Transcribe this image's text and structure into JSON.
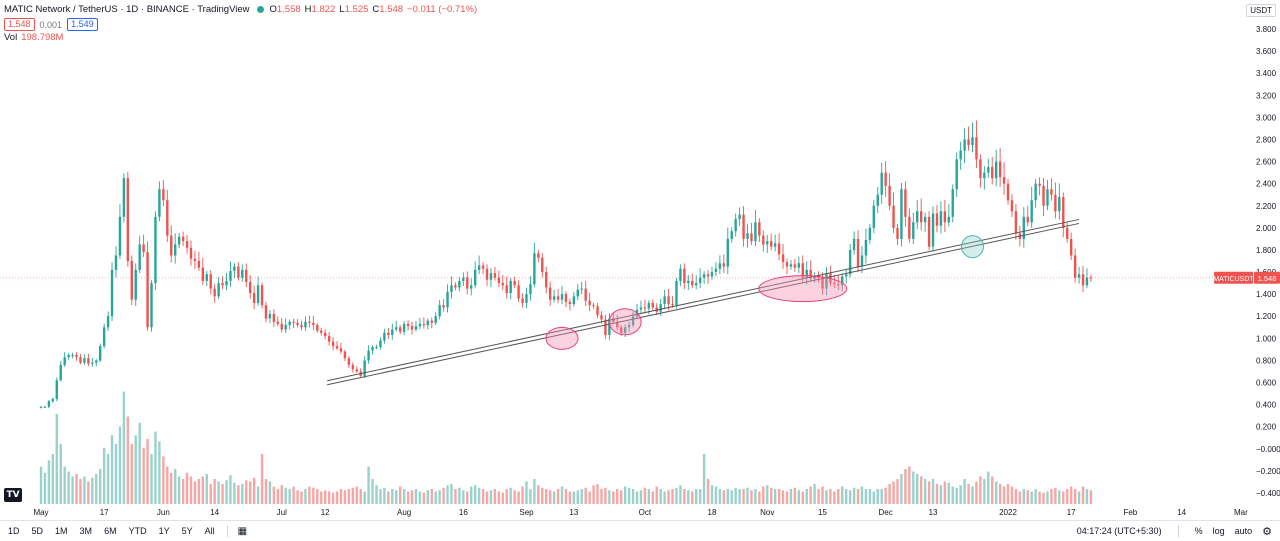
{
  "legend": {
    "title": "MATIC Network / TetherUS · 1D · BINANCE · TradingView",
    "ohlc": [
      {
        "label": "O",
        "value": "1.558"
      },
      {
        "label": "H",
        "value": "1.822"
      },
      {
        "label": "L",
        "value": "1.525"
      },
      {
        "label": "C",
        "value": "1.548"
      },
      {
        "label": "",
        "value": "−0.011 (−0.71%)"
      }
    ],
    "bid": "1.548",
    "spread": "0.001",
    "ask": "1.549",
    "vol_label": "Vol",
    "vol_value": "198.798M"
  },
  "axis": {
    "currency": "USDT",
    "ticker_label": "MATICUSDT",
    "last_price": "1.548"
  },
  "bottom_bar": {
    "ranges": [
      "1D",
      "5D",
      "1M",
      "3M",
      "6M",
      "YTD",
      "1Y",
      "5Y",
      "All"
    ],
    "time": "04:17:24 (UTC+5:30)",
    "percent": "%",
    "log": "log",
    "auto": "auto"
  },
  "colors": {
    "up": "#26a69a",
    "down": "#ef5350",
    "up_volume": "#9ad2cb",
    "down_volume": "#f5a6a5",
    "ellipse_pink": "#f48fb1",
    "ellipse_teal": "#80cbc4",
    "last_price_line": "#ef5350"
  },
  "chart_data": {
    "type": "candlestick",
    "symbol": "MATICUSDT",
    "timeframe": "1D",
    "ylim": [
      -0.5,
      4.0
    ],
    "y_ticks": [
      "3.800",
      "3.600",
      "3.400",
      "3.200",
      "3.000",
      "2.800",
      "2.600",
      "2.400",
      "2.200",
      "2.000",
      "1.800",
      "1.600",
      "1.400",
      "1.200",
      "1.000",
      "0.800",
      "0.600",
      "0.400",
      "0.200",
      "−0.000",
      "−0.200",
      "−0.400"
    ],
    "x_ticks": [
      {
        "label": "May",
        "day": 0
      },
      {
        "label": "17",
        "day": 16
      },
      {
        "label": "Jun",
        "day": 31
      },
      {
        "label": "14",
        "day": 44
      },
      {
        "label": "Jul",
        "day": 61
      },
      {
        "label": "12",
        "day": 72
      },
      {
        "label": "Aug",
        "day": 92
      },
      {
        "label": "16",
        "day": 107
      },
      {
        "label": "Sep",
        "day": 123
      },
      {
        "label": "13",
        "day": 135
      },
      {
        "label": "Oct",
        "day": 153
      },
      {
        "label": "18",
        "day": 170
      },
      {
        "label": "Nov",
        "day": 184
      },
      {
        "label": "15",
        "day": 198
      },
      {
        "label": "Dec",
        "day": 214
      },
      {
        "label": "13",
        "day": 226
      },
      {
        "label": "2022",
        "day": 245
      },
      {
        "label": "17",
        "day": 261
      },
      {
        "label": "Feb",
        "day": 276
      },
      {
        "label": "14",
        "day": 289
      },
      {
        "label": "Mar",
        "day": 304
      }
    ],
    "close_prices": [
      0.38,
      0.38,
      0.43,
      0.45,
      0.62,
      0.76,
      0.83,
      0.85,
      0.85,
      0.83,
      0.78,
      0.82,
      0.77,
      0.78,
      0.8,
      0.93,
      1.1,
      1.2,
      1.62,
      1.75,
      2.1,
      2.45,
      1.7,
      1.35,
      1.62,
      1.85,
      1.78,
      1.1,
      1.5,
      2.1,
      2.35,
      2.25,
      1.93,
      1.75,
      1.85,
      1.92,
      1.88,
      1.82,
      1.72,
      1.7,
      1.64,
      1.52,
      1.58,
      1.45,
      1.38,
      1.5,
      1.48,
      1.52,
      1.61,
      1.65,
      1.55,
      1.62,
      1.51,
      1.41,
      1.32,
      1.48,
      1.3,
      1.18,
      1.22,
      1.15,
      1.13,
      1.08,
      1.12,
      1.15,
      1.14,
      1.12,
      1.1,
      1.15,
      1.14,
      1.12,
      1.07,
      1.05,
      1.02,
      0.97,
      0.93,
      0.91,
      0.88,
      0.82,
      0.76,
      0.72,
      0.7,
      0.66,
      0.8,
      0.89,
      0.92,
      0.92,
      0.98,
      1.05,
      1.03,
      1.08,
      1.1,
      1.06,
      1.13,
      1.11,
      1.08,
      1.11,
      1.13,
      1.12,
      1.16,
      1.14,
      1.2,
      1.3,
      1.28,
      1.42,
      1.48,
      1.46,
      1.52,
      1.55,
      1.45,
      1.48,
      1.62,
      1.66,
      1.63,
      1.53,
      1.59,
      1.55,
      1.5,
      1.48,
      1.41,
      1.52,
      1.48,
      1.36,
      1.32,
      1.4,
      1.49,
      1.77,
      1.73,
      1.6,
      1.46,
      1.35,
      1.38,
      1.35,
      1.4,
      1.33,
      1.31,
      1.38,
      1.44,
      1.45,
      1.34,
      1.3,
      1.29,
      1.21,
      1.17,
      1.03,
      1.18,
      1.15,
      1.1,
      1.05,
      1.1,
      1.12,
      1.2,
      1.26,
      1.28,
      1.27,
      1.32,
      1.28,
      1.24,
      1.31,
      1.38,
      1.31,
      1.3,
      1.52,
      1.63,
      1.5,
      1.52,
      1.48,
      1.5,
      1.55,
      1.58,
      1.56,
      1.6,
      1.63,
      1.68,
      1.65,
      1.9,
      1.97,
      2.08,
      2.12,
      1.9,
      1.95,
      1.88,
      2.05,
      1.93,
      1.85,
      1.88,
      1.83,
      1.86,
      1.76,
      1.69,
      1.65,
      1.67,
      1.64,
      1.68,
      1.55,
      1.62,
      1.54,
      1.57,
      1.55,
      1.45,
      1.59,
      1.5,
      1.49,
      1.48,
      1.56,
      1.58,
      1.8,
      1.9,
      1.65,
      1.75,
      1.89,
      2.0,
      2.2,
      2.3,
      2.5,
      2.38,
      2.2,
      2.0,
      1.9,
      2.35,
      2.1,
      1.9,
      2.05,
      2.15,
      2.05,
      2.1,
      1.83,
      2.13,
      2.02,
      2.15,
      2.05,
      2.1,
      2.35,
      2.62,
      2.7,
      2.8,
      2.75,
      2.82,
      2.62,
      2.45,
      2.5,
      2.55,
      2.45,
      2.6,
      2.46,
      2.4,
      2.25,
      2.15,
      1.95,
      1.9,
      2.1,
      2.05,
      2.25,
      2.4,
      2.38,
      2.2,
      2.35,
      2.3,
      2.15,
      2.28,
      2.0,
      1.9,
      1.75,
      1.55,
      1.58,
      1.48,
      1.55,
      1.548
    ],
    "volume_scale": [
      0.3,
      0.25,
      0.35,
      0.4,
      0.72,
      0.48,
      0.3,
      0.26,
      0.22,
      0.24,
      0.2,
      0.22,
      0.18,
      0.21,
      0.24,
      0.28,
      0.45,
      0.4,
      0.55,
      0.48,
      0.62,
      0.9,
      0.7,
      0.48,
      0.55,
      0.65,
      0.45,
      0.52,
      0.4,
      0.58,
      0.5,
      0.38,
      0.3,
      0.25,
      0.28,
      0.22,
      0.2,
      0.25,
      0.22,
      0.18,
      0.2,
      0.22,
      0.24,
      0.16,
      0.2,
      0.18,
      0.16,
      0.19,
      0.23,
      0.17,
      0.15,
      0.16,
      0.19,
      0.18,
      0.21,
      0.14,
      0.4,
      0.2,
      0.18,
      0.14,
      0.12,
      0.15,
      0.13,
      0.12,
      0.14,
      0.11,
      0.1,
      0.12,
      0.14,
      0.13,
      0.12,
      0.1,
      0.11,
      0.1,
      0.09,
      0.1,
      0.12,
      0.11,
      0.12,
      0.13,
      0.14,
      0.12,
      0.1,
      0.3,
      0.2,
      0.15,
      0.12,
      0.13,
      0.1,
      0.12,
      0.11,
      0.14,
      0.12,
      0.1,
      0.11,
      0.12,
      0.1,
      0.09,
      0.11,
      0.12,
      0.1,
      0.11,
      0.13,
      0.15,
      0.16,
      0.12,
      0.13,
      0.11,
      0.1,
      0.14,
      0.15,
      0.13,
      0.12,
      0.1,
      0.11,
      0.12,
      0.1,
      0.09,
      0.12,
      0.13,
      0.11,
      0.1,
      0.14,
      0.18,
      0.12,
      0.2,
      0.15,
      0.13,
      0.12,
      0.11,
      0.1,
      0.12,
      0.14,
      0.12,
      0.1,
      0.1,
      0.11,
      0.12,
      0.13,
      0.1,
      0.15,
      0.16,
      0.12,
      0.13,
      0.11,
      0.1,
      0.12,
      0.11,
      0.14,
      0.13,
      0.12,
      0.1,
      0.11,
      0.13,
      0.12,
      0.1,
      0.14,
      0.12,
      0.1,
      0.11,
      0.12,
      0.13,
      0.15,
      0.12,
      0.11,
      0.1,
      0.12,
      0.12,
      0.4,
      0.2,
      0.15,
      0.14,
      0.12,
      0.11,
      0.12,
      0.11,
      0.13,
      0.12,
      0.12,
      0.13,
      0.11,
      0.12,
      0.1,
      0.14,
      0.15,
      0.13,
      0.12,
      0.12,
      0.11,
      0.1,
      0.12,
      0.13,
      0.11,
      0.1,
      0.12,
      0.14,
      0.16,
      0.12,
      0.14,
      0.11,
      0.12,
      0.1,
      0.12,
      0.14,
      0.12,
      0.11,
      0.13,
      0.12,
      0.14,
      0.12,
      0.12,
      0.1,
      0.12,
      0.12,
      0.13,
      0.16,
      0.18,
      0.2,
      0.24,
      0.28,
      0.3,
      0.26,
      0.24,
      0.22,
      0.2,
      0.18,
      0.2,
      0.16,
      0.15,
      0.18,
      0.17,
      0.14,
      0.13,
      0.15,
      0.2,
      0.16,
      0.14,
      0.18,
      0.22,
      0.2,
      0.26,
      0.22,
      0.18,
      0.16,
      0.14,
      0.16,
      0.14,
      0.12,
      0.1,
      0.12,
      0.11,
      0.1,
      0.12,
      0.1,
      0.09,
      0.1,
      0.12,
      0.13,
      0.11,
      0.1,
      0.12,
      0.14,
      0.12,
      0.1,
      0.14,
      0.12,
      0.11,
      0.18,
      0.15,
      0.13,
      0.22,
      0.16,
      0.18,
      0.14,
      0.18,
      0.15
    ],
    "trendline": {
      "start": {
        "day": 72.5,
        "price": 0.58
      },
      "end": {
        "day": 263,
        "price": 2.04
      }
    },
    "annotations": [
      {
        "shape": "ellipse",
        "center_day": 132,
        "center_price": 1.0,
        "color": "pink"
      },
      {
        "shape": "ellipse",
        "center_day": 148,
        "center_price": 1.15,
        "color": "pink"
      },
      {
        "shape": "ellipse",
        "center_day": 193,
        "center_price": 1.45,
        "color": "pink"
      },
      {
        "shape": "circle",
        "center_day": 236,
        "center_price": 1.83,
        "color": "teal"
      }
    ],
    "last_price": 1.548
  }
}
